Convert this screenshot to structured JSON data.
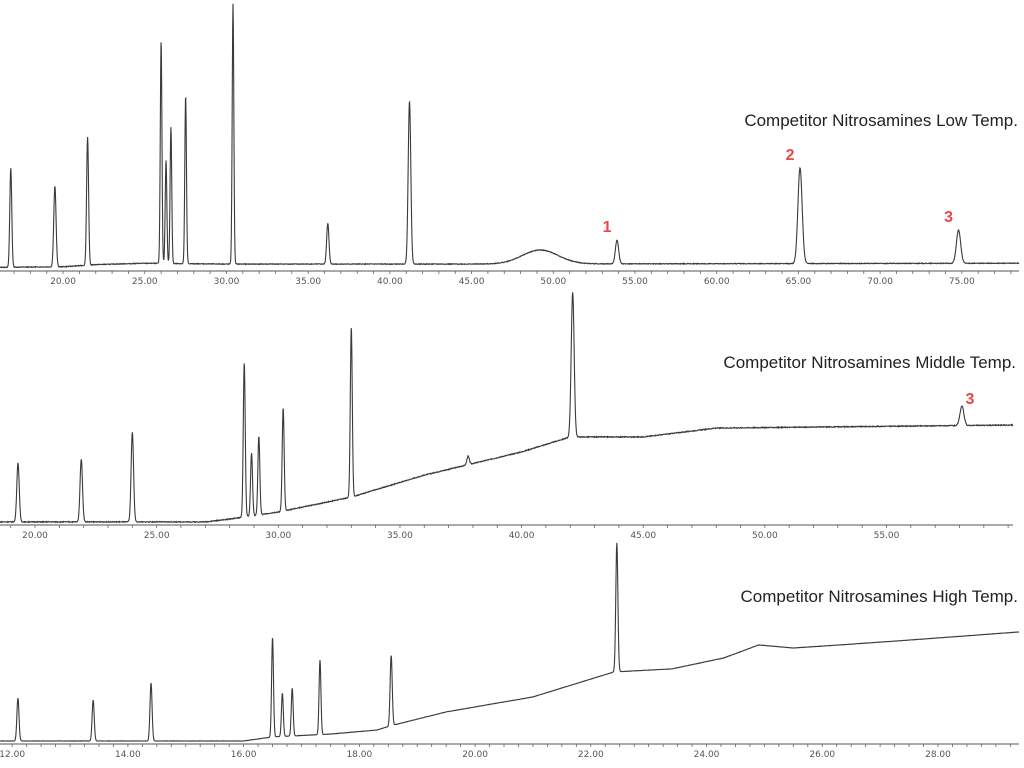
{
  "chart_data": [
    {
      "type": "line",
      "title": "Competitor Nitrosamines Low Temp.",
      "xlabel": "",
      "ylabel": "",
      "xlim": [
        16.14,
        78.5
      ],
      "ylim": [
        0,
        100
      ],
      "xticks": [
        "20.00",
        "25.00",
        "30.00",
        "35.00",
        "40.00",
        "45.00",
        "50.00",
        "55.00",
        "60.00",
        "65.00",
        "70.00",
        "75.00"
      ],
      "grid": false,
      "baseline": [
        [
          16.1,
          1.0
        ],
        [
          20,
          1.2
        ],
        [
          22,
          2.0
        ],
        [
          25,
          2.5
        ],
        [
          30,
          2.2
        ],
        [
          45,
          2.2
        ],
        [
          78.5,
          2.5
        ]
      ],
      "peaks": [
        {
          "x": 16.8,
          "y": 37.8,
          "w": 0.06
        },
        {
          "x": 19.5,
          "y": 31.1,
          "w": 0.07
        },
        {
          "x": 21.5,
          "y": 49.3,
          "w": 0.06
        },
        {
          "x": 26.0,
          "y": 85.2,
          "w": 0.05
        },
        {
          "x": 26.3,
          "y": 40.7,
          "w": 0.05
        },
        {
          "x": 26.6,
          "y": 53.0,
          "w": 0.05
        },
        {
          "x": 27.5,
          "y": 64.8,
          "w": 0.05
        },
        {
          "x": 30.4,
          "y": 98.5,
          "w": 0.05
        },
        {
          "x": 36.2,
          "y": 17.4,
          "w": 0.07
        },
        {
          "x": 41.2,
          "y": 62.6,
          "w": 0.08
        },
        {
          "x": 49.2,
          "y": 7.4,
          "w": 1.1
        },
        {
          "x": 53.9,
          "y": 11.1,
          "w": 0.1,
          "label": "1"
        },
        {
          "x": 65.1,
          "y": 37.8,
          "w": 0.13,
          "label": "2"
        },
        {
          "x": 74.8,
          "y": 14.8,
          "w": 0.13,
          "label": "3"
        }
      ]
    },
    {
      "type": "line",
      "title": "Competitor Nitrosamines Middle Temp.",
      "xlabel": "",
      "ylabel": "",
      "xlim": [
        18.56,
        60.2
      ],
      "ylim": [
        0,
        100
      ],
      "xticks": [
        "20.00",
        "25.00",
        "30.00",
        "35.00",
        "40.00",
        "45.00",
        "50.00",
        "55.00"
      ],
      "grid": false,
      "baseline": [
        [
          18.5,
          0.9
        ],
        [
          27,
          0.9
        ],
        [
          28,
          2.1
        ],
        [
          30,
          5.1
        ],
        [
          33,
          11.5
        ],
        [
          36,
          20.9
        ],
        [
          40,
          30.8
        ],
        [
          42,
          37.2
        ],
        [
          45,
          37.2
        ],
        [
          48,
          41.0
        ],
        [
          60.2,
          42.3
        ]
      ],
      "peaks": [
        {
          "x": 19.3,
          "y": 26.1,
          "w": 0.05
        },
        {
          "x": 21.9,
          "y": 27.8,
          "w": 0.05
        },
        {
          "x": 24.0,
          "y": 39.3,
          "w": 0.05
        },
        {
          "x": 28.6,
          "y": 69.2,
          "w": 0.04
        },
        {
          "x": 28.9,
          "y": 30.3,
          "w": 0.04
        },
        {
          "x": 29.2,
          "y": 37.6,
          "w": 0.04
        },
        {
          "x": 30.2,
          "y": 49.6,
          "w": 0.04
        },
        {
          "x": 33.0,
          "y": 84.2,
          "w": 0.04
        },
        {
          "x": 37.8,
          "y": 29.0,
          "w": 0.05
        },
        {
          "x": 42.1,
          "y": 99.1,
          "w": 0.06
        },
        {
          "x": 58.1,
          "y": 50.4,
          "w": 0.08,
          "label": "3"
        }
      ]
    },
    {
      "type": "line",
      "title": "Competitor Nitrosamines High Temp.",
      "xlabel": "",
      "ylabel": "",
      "xlim": [
        11.79,
        29.4
      ],
      "ylim": [
        0,
        100
      ],
      "xticks": [
        "12.00",
        "14.00",
        "16.00",
        "18.00",
        "20.00",
        "22.00",
        "24.00",
        "26.00",
        "28.00"
      ],
      "grid": false,
      "baseline": [
        [
          11.8,
          1
        ],
        [
          16,
          1
        ],
        [
          16.5,
          3
        ],
        [
          17.5,
          4.4
        ],
        [
          18.3,
          6.4
        ],
        [
          18.6,
          8.9
        ],
        [
          19.5,
          15.3
        ],
        [
          21,
          22.7
        ],
        [
          22.4,
          35
        ],
        [
          23.4,
          36.5
        ],
        [
          24.3,
          41.9
        ],
        [
          24.9,
          48.3
        ],
        [
          25.5,
          46.8
        ],
        [
          26.3,
          48.3
        ],
        [
          27.5,
          50.7
        ],
        [
          29.4,
          54.7
        ]
      ],
      "peaks": [
        {
          "x": 12.1,
          "y": 22.2,
          "w": 0.018
        },
        {
          "x": 13.4,
          "y": 21.2,
          "w": 0.018
        },
        {
          "x": 14.4,
          "y": 29.6,
          "w": 0.018
        },
        {
          "x": 16.5,
          "y": 52.2,
          "w": 0.016
        },
        {
          "x": 16.67,
          "y": 24.6,
          "w": 0.016
        },
        {
          "x": 16.84,
          "y": 27.1,
          "w": 0.016
        },
        {
          "x": 17.32,
          "y": 40.9,
          "w": 0.016
        },
        {
          "x": 18.55,
          "y": 43.3,
          "w": 0.018
        },
        {
          "x": 22.45,
          "y": 98.5,
          "w": 0.018
        }
      ]
    }
  ]
}
